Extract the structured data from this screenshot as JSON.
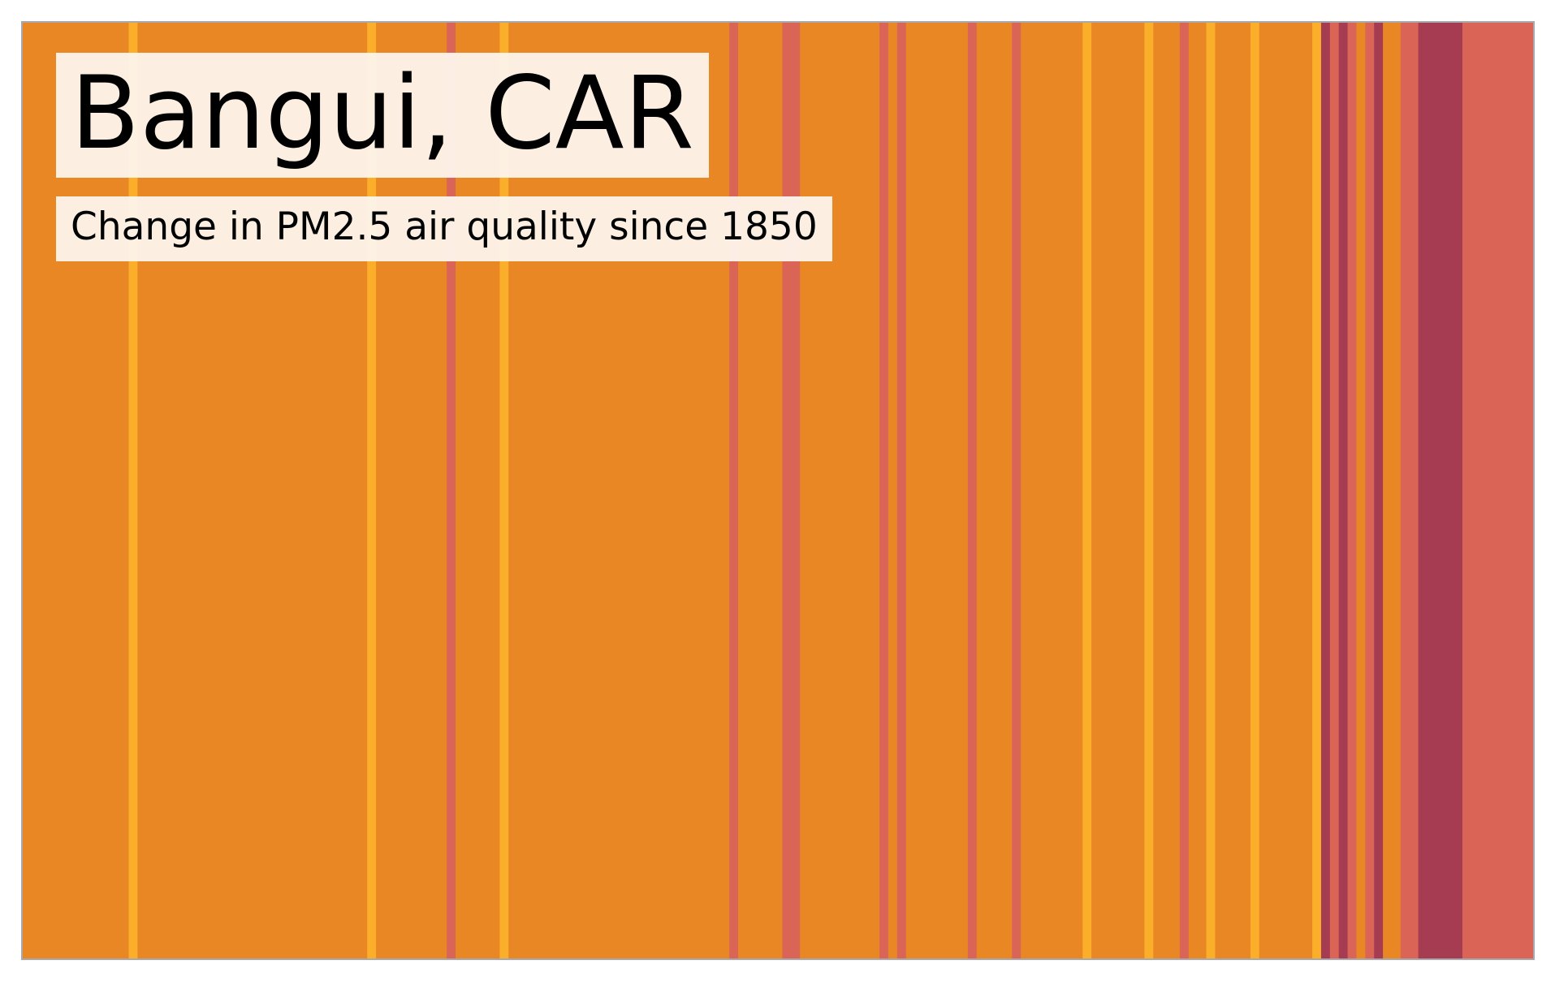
{
  "chart_data": {
    "type": "heatmap",
    "title": "Bangui, CAR",
    "subtitle": "Change in PM2.5 air quality since 1850",
    "xlabel": "",
    "ylabel": "",
    "x_range": [
      1850,
      2021
    ],
    "grid": false,
    "legend": "none",
    "colors": {
      "low": "#fbae2a",
      "baseline": "#e88724",
      "elevated": "#da6456",
      "high": "#a63c52",
      "border": "#a7a9ae"
    },
    "stripes": [
      {
        "start": 1850,
        "end": 1862,
        "level": "baseline"
      },
      {
        "start": 1862,
        "end": 1863,
        "level": "low"
      },
      {
        "start": 1863,
        "end": 1889,
        "level": "baseline"
      },
      {
        "start": 1889,
        "end": 1890,
        "level": "low"
      },
      {
        "start": 1890,
        "end": 1898,
        "level": "baseline"
      },
      {
        "start": 1898,
        "end": 1899,
        "level": "elevated"
      },
      {
        "start": 1899,
        "end": 1904,
        "level": "baseline"
      },
      {
        "start": 1904,
        "end": 1905,
        "level": "low"
      },
      {
        "start": 1905,
        "end": 1930,
        "level": "baseline"
      },
      {
        "start": 1930,
        "end": 1931,
        "level": "elevated"
      },
      {
        "start": 1931,
        "end": 1936,
        "level": "baseline"
      },
      {
        "start": 1936,
        "end": 1938,
        "level": "elevated"
      },
      {
        "start": 1938,
        "end": 1947,
        "level": "baseline"
      },
      {
        "start": 1947,
        "end": 1948,
        "level": "elevated"
      },
      {
        "start": 1948,
        "end": 1949,
        "level": "baseline"
      },
      {
        "start": 1949,
        "end": 1950,
        "level": "elevated"
      },
      {
        "start": 1950,
        "end": 1957,
        "level": "baseline"
      },
      {
        "start": 1957,
        "end": 1958,
        "level": "elevated"
      },
      {
        "start": 1958,
        "end": 1962,
        "level": "baseline"
      },
      {
        "start": 1962,
        "end": 1963,
        "level": "elevated"
      },
      {
        "start": 1963,
        "end": 1970,
        "level": "baseline"
      },
      {
        "start": 1970,
        "end": 1971,
        "level": "low"
      },
      {
        "start": 1971,
        "end": 1977,
        "level": "baseline"
      },
      {
        "start": 1977,
        "end": 1978,
        "level": "low"
      },
      {
        "start": 1978,
        "end": 1981,
        "level": "baseline"
      },
      {
        "start": 1981,
        "end": 1982,
        "level": "elevated"
      },
      {
        "start": 1982,
        "end": 1984,
        "level": "baseline"
      },
      {
        "start": 1984,
        "end": 1985,
        "level": "low"
      },
      {
        "start": 1985,
        "end": 1989,
        "level": "baseline"
      },
      {
        "start": 1989,
        "end": 1990,
        "level": "low"
      },
      {
        "start": 1990,
        "end": 1996,
        "level": "baseline"
      },
      {
        "start": 1996,
        "end": 1997,
        "level": "low"
      },
      {
        "start": 1997,
        "end": 1998,
        "level": "high"
      },
      {
        "start": 1998,
        "end": 1999,
        "level": "elevated"
      },
      {
        "start": 1999,
        "end": 2000,
        "level": "high"
      },
      {
        "start": 2000,
        "end": 2001,
        "level": "elevated"
      },
      {
        "start": 2001,
        "end": 2002,
        "level": "baseline"
      },
      {
        "start": 2002,
        "end": 2003,
        "level": "elevated"
      },
      {
        "start": 2003,
        "end": 2004,
        "level": "high"
      },
      {
        "start": 2004,
        "end": 2006,
        "level": "baseline"
      },
      {
        "start": 2006,
        "end": 2008,
        "level": "elevated"
      },
      {
        "start": 2008,
        "end": 2013,
        "level": "high"
      },
      {
        "start": 2013,
        "end": 2021,
        "level": "elevated"
      }
    ]
  }
}
